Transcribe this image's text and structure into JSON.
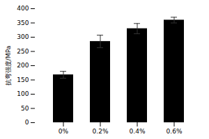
{
  "chart_data": {
    "type": "bar",
    "categories": [
      "0%",
      "0.2%",
      "0.4%",
      "0.6%"
    ],
    "values": [
      168,
      285,
      330,
      360
    ],
    "errors": [
      12,
      22,
      18,
      10
    ],
    "ylabel": "抗弯强度/MPa",
    "ylim": [
      0,
      400
    ],
    "yticks": [
      0,
      50,
      100,
      150,
      200,
      250,
      300,
      350,
      400
    ],
    "grid": false
  }
}
